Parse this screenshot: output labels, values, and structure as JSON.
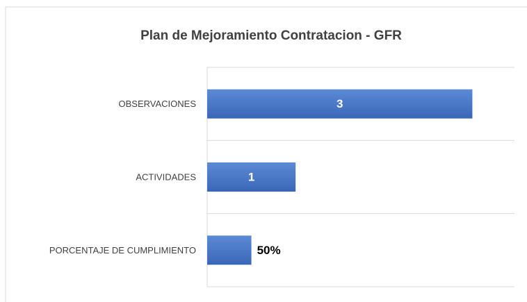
{
  "chart_data": {
    "type": "bar",
    "orientation": "horizontal",
    "title": "Plan de Mejoramiento Contratacion - GFR",
    "categories": [
      "OBSERVACIONES",
      "ACTIVIDADES",
      "PORCENTAJE DE CUMPLIMIENTO"
    ],
    "values": [
      3,
      1,
      0.5
    ],
    "value_labels": [
      "3",
      "1",
      "50%"
    ],
    "color": "#4472c4",
    "xlim": [
      0,
      3.5
    ],
    "grid": true
  }
}
